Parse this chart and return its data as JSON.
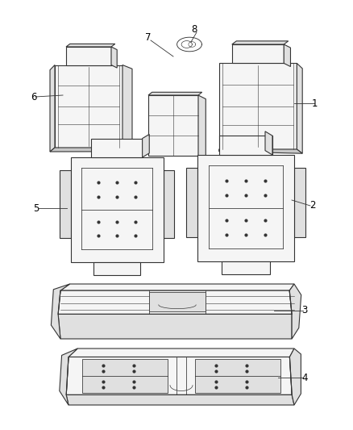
{
  "background_color": "#ffffff",
  "line_color": "#333333",
  "fill_light": "#f5f5f5",
  "fill_mid": "#e0e0e0",
  "fill_dark": "#c8c8c8",
  "label_color": "#000000",
  "label_fontsize": 8.5,
  "fig_width": 4.38,
  "fig_height": 5.33,
  "dpi": 100
}
